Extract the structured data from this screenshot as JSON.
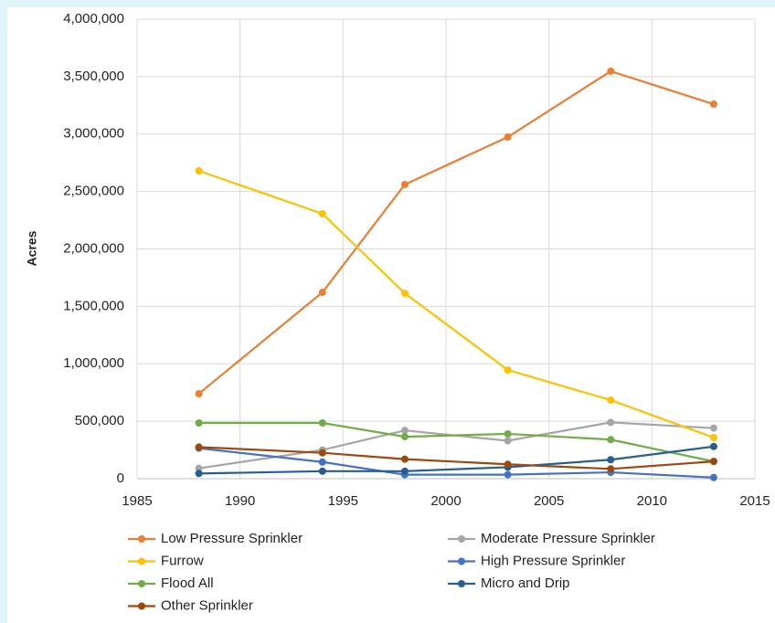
{
  "chart_data": {
    "type": "line",
    "y_label": "Acres",
    "x": [
      1988,
      1994,
      1998,
      2003,
      2008,
      2013
    ],
    "xlim": [
      1985,
      2015
    ],
    "xticks": [
      1985,
      1990,
      1995,
      2000,
      2005,
      2010,
      2015
    ],
    "ylim": [
      0,
      4000000
    ],
    "yticks": [
      0,
      {
        "value": 500000,
        "label": "500,000"
      },
      {
        "value": 1000000,
        "label": "1,000,000"
      },
      {
        "value": 1500000,
        "label": "1,500,000"
      },
      {
        "value": 2000000,
        "label": "2,000,000"
      },
      {
        "value": 2500000,
        "label": "2,500,000"
      },
      {
        "value": 3000000,
        "label": "3,000,000"
      },
      {
        "value": 3500000,
        "label": "3,500,000"
      },
      {
        "value": 4000000,
        "label": "4,000,000"
      }
    ],
    "grid": true,
    "series": [
      {
        "name": "Low Pressure Sprinkler",
        "color": "#ed7d31",
        "values": [
          740000,
          1622000,
          2561000,
          2974000,
          3547000,
          3260000
        ]
      },
      {
        "name": "Moderate Pressure Sprinkler",
        "color": "#a5a5a5",
        "values": [
          90000,
          250000,
          420000,
          330000,
          490000,
          440000
        ]
      },
      {
        "name": "Furrow",
        "color": "#ffc000",
        "values": [
          2680000,
          2306000,
          1614000,
          946000,
          684000,
          358000
        ]
      },
      {
        "name": "High Pressure Sprinkler",
        "color": "#4472c4",
        "values": [
          265000,
          145000,
          35000,
          35000,
          55000,
          10000
        ]
      },
      {
        "name": "Flood All",
        "color": "#70ad47",
        "values": [
          485000,
          485000,
          365000,
          390000,
          340000,
          150000
        ]
      },
      {
        "name": "Micro and Drip",
        "color": "#255e91",
        "values": [
          45000,
          65000,
          65000,
          100000,
          165000,
          280000
        ]
      },
      {
        "name": "Other Sprinkler",
        "color": "#9e480e",
        "values": [
          275000,
          225000,
          170000,
          125000,
          85000,
          150000
        ]
      }
    ]
  }
}
